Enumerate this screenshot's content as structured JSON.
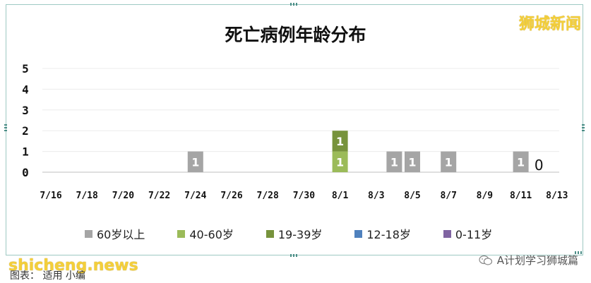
{
  "title": "死亡病例年龄分布",
  "brand": "狮城新闻",
  "watermark_left": "shicheng.news",
  "caption": "图表：  适用 小编",
  "watermark_right": "A计划学习狮城篇",
  "colors": {
    "60_plus": "#a5a5a5",
    "40_60": "#9bbb59",
    "19_39": "#77933c",
    "12_18": "#4f81bd",
    "0_11": "#8064a2",
    "frame": "#9ec9c3",
    "brand": "#f4cf3a"
  },
  "chart_data": {
    "type": "bar",
    "title": "死亡病例年龄分布",
    "ylim": [
      0,
      5
    ],
    "yticks": [
      "0",
      "1",
      "2",
      "3",
      "4",
      "5"
    ],
    "x_tick_labels": [
      "7/16",
      "7/18",
      "7/20",
      "7/22",
      "7/24",
      "7/26",
      "7/28",
      "7/30",
      "8/1",
      "8/3",
      "8/5",
      "8/7",
      "8/9",
      "8/11",
      "8/13"
    ],
    "categories": [
      "7/16",
      "7/17",
      "7/18",
      "7/19",
      "7/20",
      "7/21",
      "7/22",
      "7/23",
      "7/24",
      "7/25",
      "7/26",
      "7/27",
      "7/28",
      "7/29",
      "7/30",
      "7/31",
      "8/1",
      "8/2",
      "8/3",
      "8/4",
      "8/5",
      "8/6",
      "8/7",
      "8/8",
      "8/9",
      "8/10",
      "8/11",
      "8/12",
      "8/13"
    ],
    "series": [
      {
        "name": "60岁以上",
        "color": "#a5a5a5",
        "values": [
          0,
          0,
          0,
          0,
          0,
          0,
          0,
          0,
          1,
          0,
          0,
          0,
          0,
          0,
          0,
          0,
          0,
          0,
          0,
          1,
          1,
          0,
          1,
          0,
          0,
          0,
          1,
          0,
          0
        ]
      },
      {
        "name": "40-60岁",
        "color": "#9bbb59",
        "values": [
          0,
          0,
          0,
          0,
          0,
          0,
          0,
          0,
          0,
          0,
          0,
          0,
          0,
          0,
          0,
          0,
          1,
          0,
          0,
          0,
          0,
          0,
          0,
          0,
          0,
          0,
          0,
          0,
          0
        ]
      },
      {
        "name": "19-39岁",
        "color": "#77933c",
        "values": [
          0,
          0,
          0,
          0,
          0,
          0,
          0,
          0,
          0,
          0,
          0,
          0,
          0,
          0,
          0,
          0,
          1,
          0,
          0,
          0,
          0,
          0,
          0,
          0,
          0,
          0,
          0,
          0,
          0
        ]
      },
      {
        "name": "12-18岁",
        "color": "#4f81bd",
        "values": [
          0,
          0,
          0,
          0,
          0,
          0,
          0,
          0,
          0,
          0,
          0,
          0,
          0,
          0,
          0,
          0,
          0,
          0,
          0,
          0,
          0,
          0,
          0,
          0,
          0,
          0,
          0,
          0,
          0
        ]
      },
      {
        "name": "0-11岁",
        "color": "#8064a2",
        "values": [
          0,
          0,
          0,
          0,
          0,
          0,
          0,
          0,
          0,
          0,
          0,
          0,
          0,
          0,
          0,
          0,
          0,
          0,
          0,
          0,
          0,
          0,
          0,
          0,
          0,
          0,
          0,
          0,
          0
        ]
      }
    ],
    "annotations": [
      {
        "category": "8/12",
        "text": "0"
      }
    ],
    "grid": true,
    "legend_position": "bottom"
  }
}
